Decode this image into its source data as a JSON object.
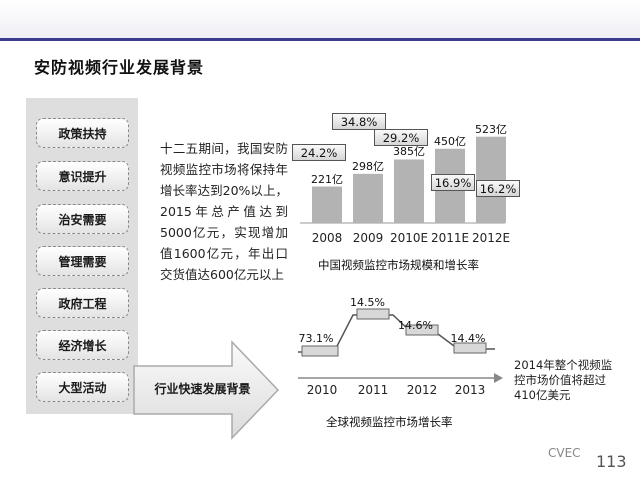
{
  "title": "安防视频行业发展背景",
  "factors": [
    "政策扶持",
    "意识提升",
    "治安需要",
    "管理需要",
    "政府工程",
    "经济增长",
    "大型活动"
  ],
  "arrow_label": "行业快速发展背景",
  "description": "十二五期间，我国安防视频监控市场将保持年增长率达到20%以上，2015年总产值达到5000亿元，实现增加值1600亿元，年出口交货值达600亿元以上",
  "chart_data": [
    {
      "type": "bar",
      "title": "中国视频监控市场规模和增长率",
      "categories": [
        "2008",
        "2009",
        "2010E",
        "2011E",
        "2012E"
      ],
      "values": [
        221,
        298,
        385,
        450,
        523
      ],
      "value_labels": [
        "221亿",
        "298亿",
        "385亿",
        "450亿",
        "523亿"
      ],
      "growth_labels": [
        "24.2%",
        "34.8%",
        "29.2%",
        "16.9%",
        "16.2%"
      ],
      "growth_values": [
        24.2,
        34.8,
        29.2,
        16.9,
        16.2
      ]
    },
    {
      "type": "line",
      "title": "全球视频监控市场增长率",
      "categories": [
        "2010",
        "2011",
        "2012",
        "2013"
      ],
      "values": [
        73.1,
        14.5,
        14.6,
        14.4
      ],
      "value_labels": [
        "73.1%",
        "14.5%",
        "14.6%",
        "14.4%"
      ]
    }
  ],
  "note": "2014年整个视频监控市场价值将超过410亿美元",
  "watermark": "CVEC",
  "page_number": "113"
}
